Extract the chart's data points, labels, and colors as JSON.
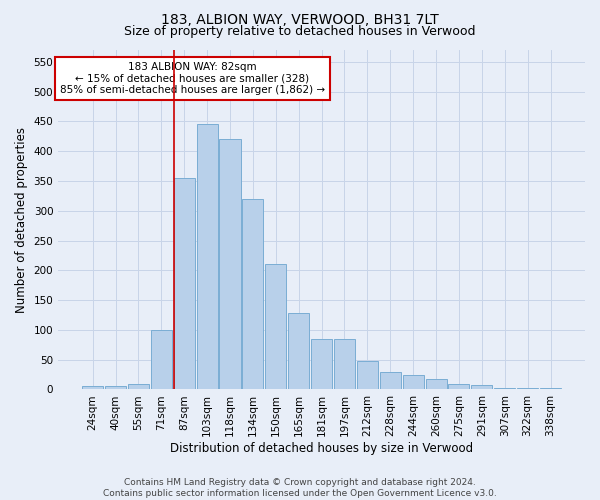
{
  "title": "183, ALBION WAY, VERWOOD, BH31 7LT",
  "subtitle": "Size of property relative to detached houses in Verwood",
  "xlabel": "Distribution of detached houses by size in Verwood",
  "ylabel": "Number of detached properties",
  "categories": [
    "24sqm",
    "40sqm",
    "55sqm",
    "71sqm",
    "87sqm",
    "103sqm",
    "118sqm",
    "134sqm",
    "150sqm",
    "165sqm",
    "181sqm",
    "197sqm",
    "212sqm",
    "228sqm",
    "244sqm",
    "260sqm",
    "275sqm",
    "291sqm",
    "307sqm",
    "322sqm",
    "338sqm"
  ],
  "values": [
    5,
    5,
    10,
    100,
    355,
    445,
    420,
    320,
    210,
    128,
    85,
    85,
    48,
    30,
    25,
    18,
    10,
    8,
    3,
    2,
    2
  ],
  "bar_color": "#b8d0ea",
  "bar_edge_color": "#7aadd4",
  "bar_edge_width": 0.7,
  "highlight_line_index": 4,
  "highlight_color": "#cc0000",
  "annotation_text": "183 ALBION WAY: 82sqm\n← 15% of detached houses are smaller (328)\n85% of semi-detached houses are larger (1,862) →",
  "annotation_box_color": "#ffffff",
  "annotation_box_edge_color": "#cc0000",
  "ylim": [
    0,
    570
  ],
  "yticks": [
    0,
    50,
    100,
    150,
    200,
    250,
    300,
    350,
    400,
    450,
    500,
    550
  ],
  "grid_color": "#c8d4e8",
  "bg_color": "#e8eef8",
  "footer_line1": "Contains HM Land Registry data © Crown copyright and database right 2024.",
  "footer_line2": "Contains public sector information licensed under the Open Government Licence v3.0.",
  "title_fontsize": 10,
  "subtitle_fontsize": 9,
  "xlabel_fontsize": 8.5,
  "ylabel_fontsize": 8.5,
  "tick_fontsize": 7.5,
  "annotation_fontsize": 7.5,
  "footer_fontsize": 6.5
}
